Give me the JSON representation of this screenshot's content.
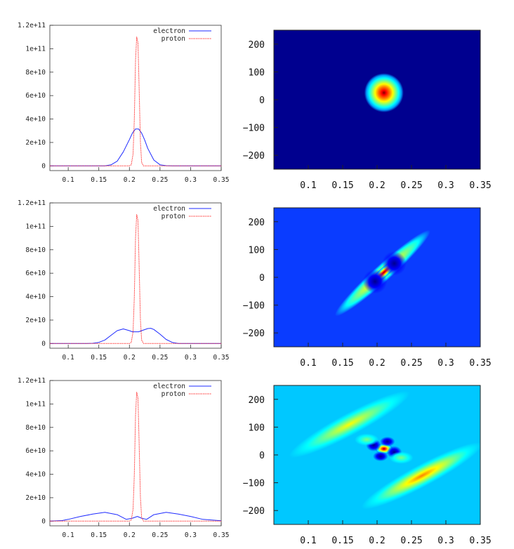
{
  "figure": {
    "colors": {
      "electron": "#1f2bff",
      "proton": "#ff2b2b",
      "colormap": [
        "#00008f",
        "#0000ff",
        "#00a0ff",
        "#00ffff",
        "#7fff7f",
        "#ffff00",
        "#ff8000",
        "#ff0000",
        "#800000"
      ]
    }
  },
  "chart_data": [
    {
      "type": "line",
      "panel": "row1-line",
      "legend": [
        "electron",
        "proton"
      ],
      "legend_position": "top-right",
      "xlim": [
        0.07,
        0.35
      ],
      "ylim": [
        -4000000000.0,
        120000000000.0
      ],
      "xticks": [
        "0.1",
        "0.15",
        "0.2",
        "0.25",
        "0.3",
        "0.35"
      ],
      "xtick_values": [
        0.1,
        0.15,
        0.2,
        0.25,
        0.3,
        0.35
      ],
      "yticks": [
        "0",
        "2e+10",
        "4e+10",
        "6e+10",
        "8e+10",
        "1e+11",
        "1.2e+11"
      ],
      "ytick_values": [
        0,
        20000000000.0,
        40000000000.0,
        60000000000.0,
        80000000000.0,
        100000000000.0,
        120000000000.0
      ],
      "series": [
        {
          "name": "electron",
          "x": [
            0.07,
            0.1,
            0.15,
            0.16,
            0.17,
            0.18,
            0.19,
            0.2,
            0.205,
            0.21,
            0.215,
            0.22,
            0.225,
            0.23,
            0.24,
            0.25,
            0.26,
            0.27,
            0.3,
            0.35
          ],
          "y": [
            0,
            0,
            0,
            100000000.0,
            900000000.0,
            4000000000.0,
            12000000000.0,
            22500000000.0,
            28000000000.0,
            31500000000.0,
            31500000000.0,
            28000000000.0,
            22000000000.0,
            15000000000.0,
            5000000000.0,
            1000000000.0,
            200000000.0,
            0,
            0,
            0
          ]
        },
        {
          "name": "proton",
          "x": [
            0.07,
            0.2,
            0.203,
            0.206,
            0.208,
            0.21,
            0.212,
            0.214,
            0.216,
            0.218,
            0.22,
            0.223,
            0.35
          ],
          "y": [
            0,
            0,
            1000000000.0,
            10000000000.0,
            40000000000.0,
            90000000000.0,
            110000000000.0,
            105000000000.0,
            65000000000.0,
            20000000000.0,
            3000000000.0,
            0,
            0
          ]
        }
      ]
    },
    {
      "type": "heatmap",
      "panel": "row1-heatmap",
      "background": "#00008f",
      "xlim": [
        0.05,
        0.35
      ],
      "ylim": [
        -250,
        250
      ],
      "xticks": [
        "0.1",
        "0.15",
        "0.2",
        "0.25",
        "0.3",
        "0.35"
      ],
      "xtick_values": [
        0.1,
        0.15,
        0.2,
        0.25,
        0.3,
        0.35
      ],
      "yticks": [
        "200",
        "100",
        "0",
        "−100",
        "−200"
      ],
      "ytick_values": [
        200,
        100,
        0,
        -100,
        -200
      ],
      "blobs": [
        {
          "x": 0.21,
          "y": 25,
          "sx": 0.013,
          "sy": 32,
          "angle": 0,
          "level": 1.0
        }
      ]
    },
    {
      "type": "line",
      "panel": "row2-line",
      "legend": [
        "electron",
        "proton"
      ],
      "legend_position": "top-right",
      "xlim": [
        0.07,
        0.35
      ],
      "ylim": [
        -4000000000.0,
        120000000000.0
      ],
      "xticks": [
        "0.1",
        "0.15",
        "0.2",
        "0.25",
        "0.3",
        "0.35"
      ],
      "xtick_values": [
        0.1,
        0.15,
        0.2,
        0.25,
        0.3,
        0.35
      ],
      "yticks": [
        "0",
        "2e+10",
        "4e+10",
        "6e+10",
        "8e+10",
        "1e+11",
        "1.2e+11"
      ],
      "ytick_values": [
        0,
        20000000000.0,
        40000000000.0,
        60000000000.0,
        80000000000.0,
        100000000000.0,
        120000000000.0
      ],
      "series": [
        {
          "name": "electron",
          "x": [
            0.07,
            0.13,
            0.14,
            0.15,
            0.16,
            0.17,
            0.18,
            0.19,
            0.2,
            0.205,
            0.21,
            0.215,
            0.22,
            0.23,
            0.235,
            0.24,
            0.25,
            0.26,
            0.27,
            0.28,
            0.35
          ],
          "y": [
            0,
            0,
            200000000.0,
            1000000000.0,
            3000000000.0,
            7000000000.0,
            11000000000.0,
            12500000000.0,
            11000000000.0,
            10000000000.0,
            10000000000.0,
            10000000000.0,
            11000000000.0,
            12800000000.0,
            13000000000.0,
            12000000000.0,
            8000000000.0,
            3500000000.0,
            1000000000.0,
            100000000.0,
            0
          ]
        },
        {
          "name": "proton",
          "x": [
            0.07,
            0.2,
            0.203,
            0.206,
            0.208,
            0.21,
            0.212,
            0.214,
            0.216,
            0.218,
            0.22,
            0.223,
            0.35
          ],
          "y": [
            0,
            0,
            1000000000.0,
            10000000000.0,
            40000000000.0,
            90000000000.0,
            110000000000.0,
            105000000000.0,
            65000000000.0,
            20000000000.0,
            3000000000.0,
            0,
            0
          ]
        }
      ]
    },
    {
      "type": "heatmap",
      "panel": "row2-heatmap",
      "background": "#0a3cff",
      "xlim": [
        0.05,
        0.35
      ],
      "ylim": [
        -250,
        250
      ],
      "xticks": [
        "0.1",
        "0.15",
        "0.2",
        "0.25",
        "0.3",
        "0.35"
      ],
      "xtick_values": [
        0.1,
        0.15,
        0.2,
        0.25,
        0.3,
        0.35
      ],
      "yticks": [
        "200",
        "100",
        "0",
        "−100",
        "−200"
      ],
      "ytick_values": [
        200,
        100,
        0,
        -100,
        -200
      ],
      "blobs": [
        {
          "x": 0.208,
          "y": 15,
          "sx": 0.042,
          "sy": 14,
          "angle": -42,
          "level": 0.62
        },
        {
          "x": 0.21,
          "y": 18,
          "sx": 0.014,
          "sy": 8,
          "angle": -42,
          "level": 1.0
        },
        {
          "x": 0.225,
          "y": 50,
          "sx": 0.008,
          "sy": 20,
          "angle": -42,
          "level": -0.8
        },
        {
          "x": 0.197,
          "y": -15,
          "sx": 0.008,
          "sy": 20,
          "angle": -42,
          "level": -0.8
        }
      ]
    },
    {
      "type": "line",
      "panel": "row3-line",
      "legend": [
        "electron",
        "proton"
      ],
      "legend_position": "top-right",
      "xlim": [
        0.07,
        0.35
      ],
      "ylim": [
        -4000000000.0,
        120000000000.0
      ],
      "xticks": [
        "0.1",
        "0.15",
        "0.2",
        "0.25",
        "0.3",
        "0.35"
      ],
      "xtick_values": [
        0.1,
        0.15,
        0.2,
        0.25,
        0.3,
        0.35
      ],
      "yticks": [
        "0",
        "2e+10",
        "4e+10",
        "6e+10",
        "8e+10",
        "1e+11",
        "1.2e+11"
      ],
      "ytick_values": [
        0,
        20000000000.0,
        40000000000.0,
        60000000000.0,
        80000000000.0,
        100000000000.0,
        120000000000.0
      ],
      "series": [
        {
          "name": "electron",
          "x": [
            0.07,
            0.09,
            0.1,
            0.12,
            0.14,
            0.16,
            0.18,
            0.195,
            0.205,
            0.213,
            0.22,
            0.228,
            0.24,
            0.26,
            0.28,
            0.3,
            0.32,
            0.35
          ],
          "y": [
            0,
            500000000.0,
            1500000000.0,
            4000000000.0,
            6000000000.0,
            7500000000.0,
            5500000000.0,
            1500000000.0,
            2500000000.0,
            4000000000.0,
            2500000000.0,
            1500000000.0,
            5500000000.0,
            7500000000.0,
            6000000000.0,
            4000000000.0,
            1500000000.0,
            300000000.0
          ]
        },
        {
          "name": "proton",
          "x": [
            0.07,
            0.2,
            0.203,
            0.206,
            0.208,
            0.21,
            0.212,
            0.214,
            0.216,
            0.218,
            0.22,
            0.223,
            0.35
          ],
          "y": [
            0,
            0,
            1000000000.0,
            10000000000.0,
            40000000000.0,
            90000000000.0,
            110000000000.0,
            105000000000.0,
            65000000000.0,
            20000000000.0,
            3000000000.0,
            0,
            0
          ]
        }
      ]
    },
    {
      "type": "heatmap",
      "panel": "row3-heatmap",
      "background": "#00c8ff",
      "xlim": [
        0.05,
        0.35
      ],
      "ylim": [
        -250,
        250
      ],
      "xticks": [
        "0.1",
        "0.15",
        "0.2",
        "0.25",
        "0.3",
        "0.35"
      ],
      "xtick_values": [
        0.1,
        0.15,
        0.2,
        0.25,
        0.3,
        0.35
      ],
      "yticks": [
        "200",
        "100",
        "0",
        "−100",
        "−200"
      ],
      "ytick_values": [
        200,
        100,
        0,
        -100,
        -200
      ],
      "blobs": [
        {
          "x": 0.16,
          "y": 110,
          "sx": 0.045,
          "sy": 18,
          "angle": -28,
          "level": 0.5
        },
        {
          "x": 0.265,
          "y": -75,
          "sx": 0.045,
          "sy": 18,
          "angle": -28,
          "level": 0.65
        },
        {
          "x": 0.21,
          "y": 22,
          "sx": 0.006,
          "sy": 9,
          "angle": 0,
          "level": 1.0
        },
        {
          "x": 0.195,
          "y": 35,
          "sx": 0.005,
          "sy": 10,
          "angle": 0,
          "level": -0.9
        },
        {
          "x": 0.225,
          "y": 10,
          "sx": 0.005,
          "sy": 10,
          "angle": 0,
          "level": -0.9
        },
        {
          "x": 0.205,
          "y": -5,
          "sx": 0.005,
          "sy": 8,
          "angle": 0,
          "level": -0.7
        },
        {
          "x": 0.215,
          "y": 48,
          "sx": 0.005,
          "sy": 8,
          "angle": 0,
          "level": -0.7
        },
        {
          "x": 0.185,
          "y": 55,
          "sx": 0.008,
          "sy": 10,
          "angle": 0,
          "level": 0.35
        },
        {
          "x": 0.235,
          "y": -10,
          "sx": 0.008,
          "sy": 10,
          "angle": 0,
          "level": 0.35
        }
      ]
    }
  ]
}
